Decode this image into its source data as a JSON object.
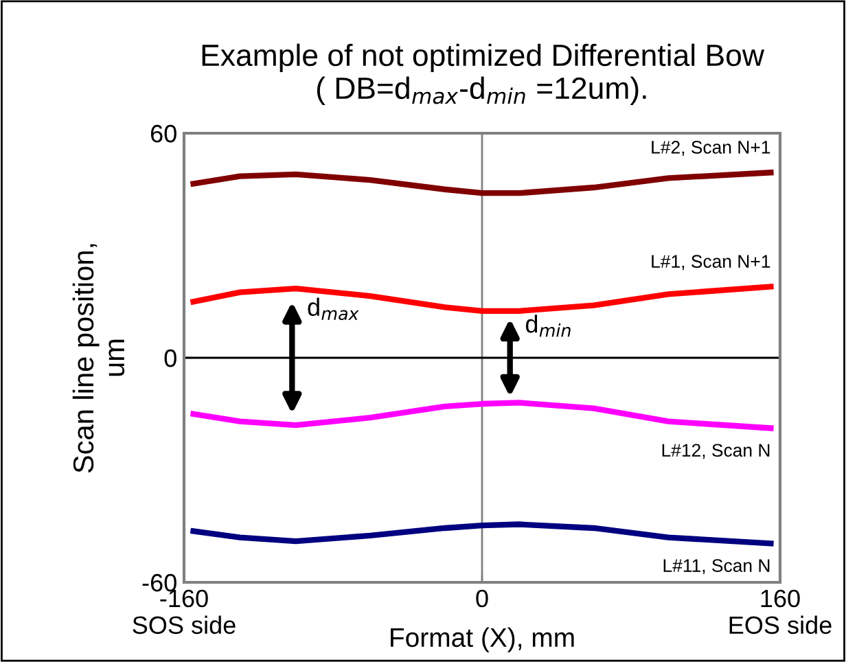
{
  "chart_data": {
    "type": "line",
    "title": "Example of not optimized Differential Bow\n( DB=d$_{max}$-d$_{min}$ =12um).",
    "xlabel": "Format (X), mm",
    "ylabel": "Scan line position,\num",
    "x": [
      -155,
      -130,
      -100,
      -60,
      -20,
      0,
      20,
      60,
      100,
      155
    ],
    "series": [
      {
        "name": "L#2, Scan N+1",
        "color": "#800000",
        "values": [
          46.5,
          48.5,
          49,
          47.5,
          45,
          44,
          44,
          45.5,
          48,
          49.5
        ]
      },
      {
        "name": "L#1, Scan N+1",
        "color": "#ff0000",
        "values": [
          15,
          17.5,
          18.5,
          16.5,
          13.5,
          12.5,
          12.5,
          14,
          17,
          19
        ]
      },
      {
        "name": "L#12, Scan N",
        "color": "#ff00ff",
        "values": [
          -15,
          -17,
          -18,
          -16,
          -13,
          -12.3,
          -12,
          -13.5,
          -17,
          -18.8
        ]
      },
      {
        "name": "L#11, Scan N",
        "color": "#000080",
        "values": [
          -46.3,
          -48,
          -49,
          -47.5,
          -45.5,
          -44.8,
          -44.5,
          -45.5,
          -48,
          -49.6
        ]
      }
    ],
    "xlim": [
      -160,
      160
    ],
    "ylim": [
      -60,
      60
    ],
    "xticks": [
      {
        "value": -160,
        "label": "-160\nSOS side"
      },
      0,
      {
        "value": 160,
        "label": "160\nEOS side"
      }
    ],
    "yticks": [
      -60,
      0,
      60
    ],
    "ref_lines": [
      {
        "axis": "x",
        "value": 0,
        "color": "#808080"
      },
      {
        "axis": "y",
        "value": 0,
        "color": "#000000"
      }
    ],
    "annotations": [
      {
        "text": "d$_{max}$",
        "x": -102,
        "y": 16
      },
      {
        "text": "d$_{min}$",
        "x": 15,
        "y": 11.5
      }
    ],
    "grid": false,
    "legend": false,
    "marker": "none",
    "line_style": "solid"
  }
}
